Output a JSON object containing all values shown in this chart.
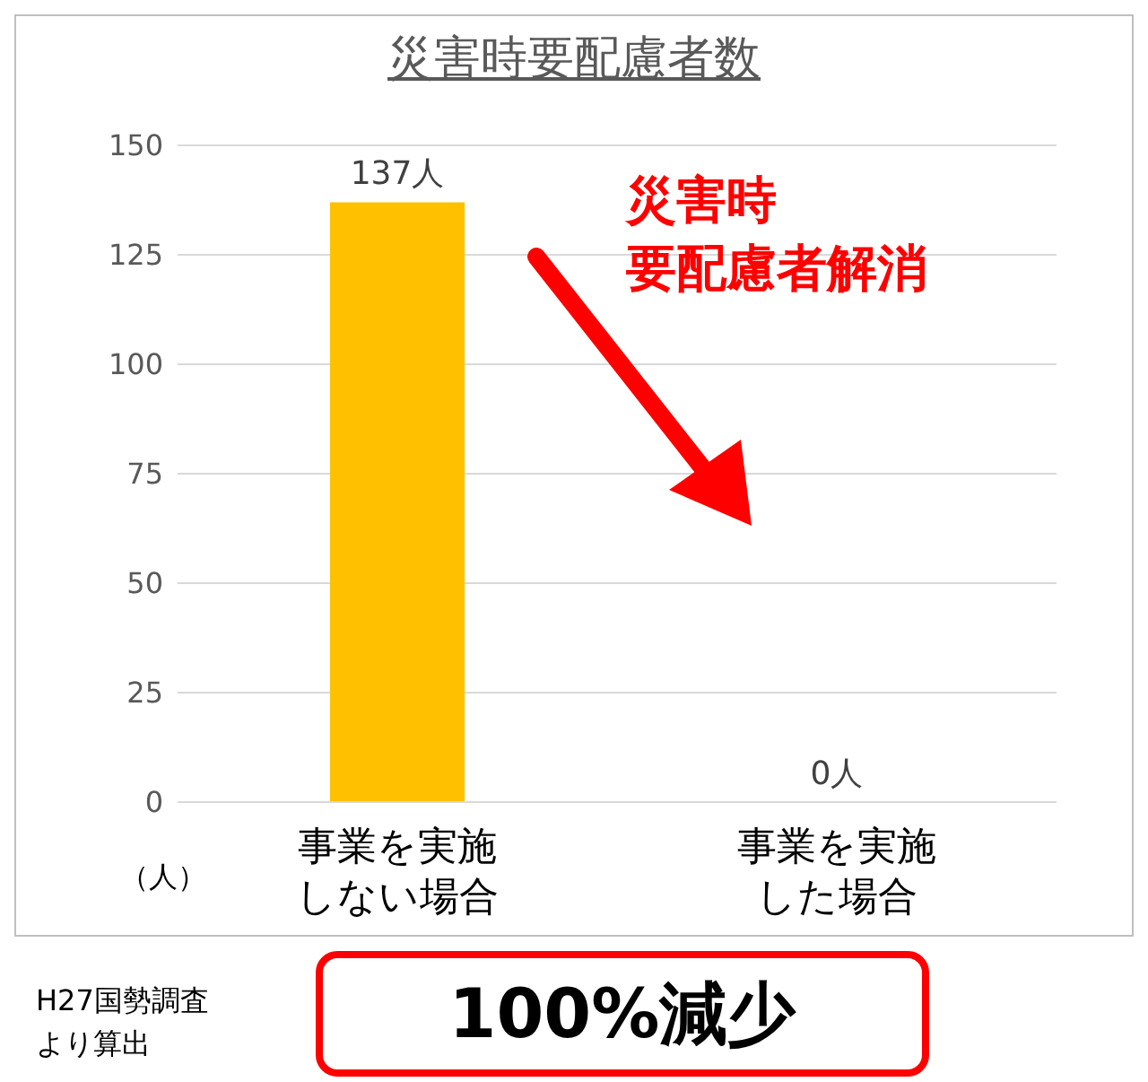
{
  "chart_data": {
    "type": "bar",
    "title": "災害時要配慮者数",
    "ylabel": "（人）",
    "categories": [
      "事業を実施しない場合",
      "事業を実施した場合"
    ],
    "values": [
      137,
      0
    ],
    "value_labels": [
      "137人",
      "0人"
    ],
    "color": "#ffc000",
    "ylim": [
      0,
      150
    ],
    "yticks": [
      0,
      25,
      50,
      75,
      100,
      125,
      150
    ],
    "grid": "y",
    "annotations": [
      "災害時要配慮者解消",
      "H27国勢調査より算出",
      "100%減少"
    ]
  }
}
